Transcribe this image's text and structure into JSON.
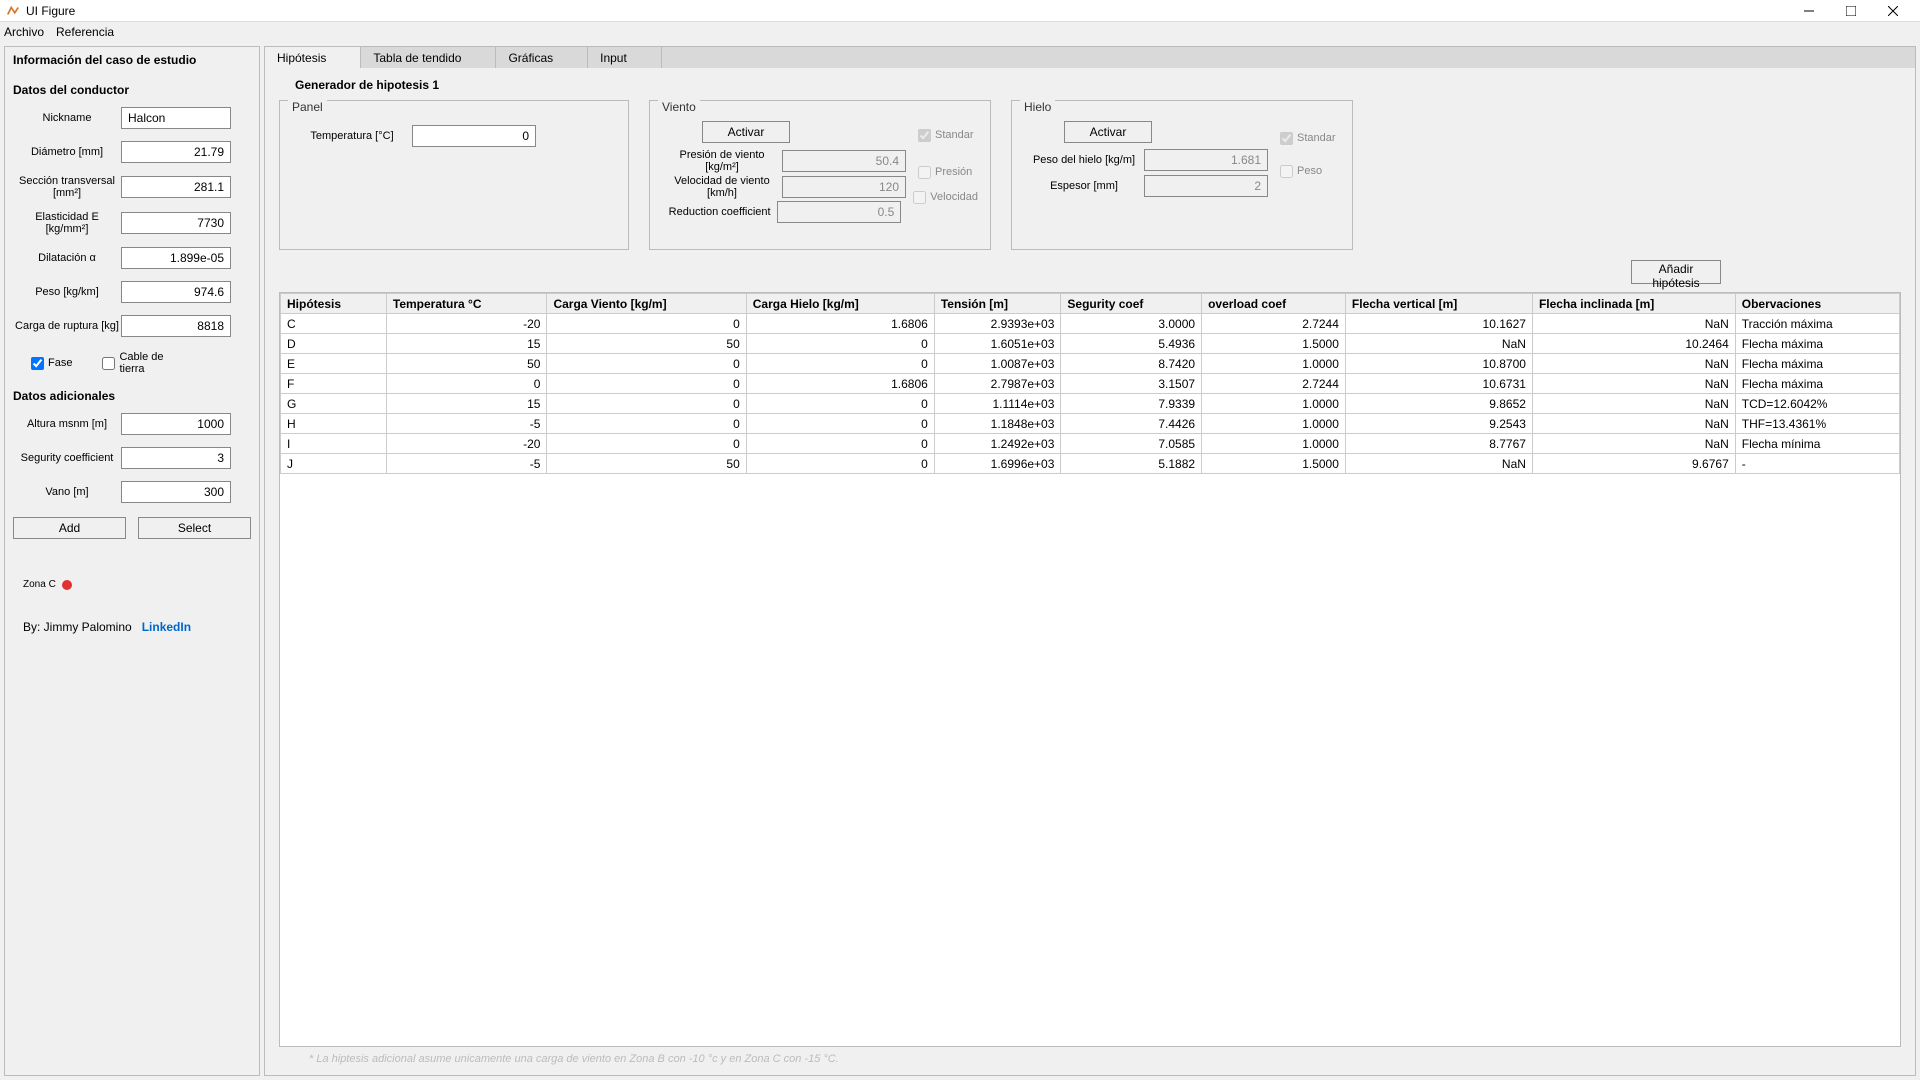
{
  "window": {
    "title": "UI Figure"
  },
  "menu": {
    "archivo": "Archivo",
    "referencia": "Referencia"
  },
  "left": {
    "heading": "Información del caso de estudio",
    "sec1": "Datos del conductor",
    "nickname_l": "Nickname",
    "nickname_v": "Halcon",
    "diam_l": "Diámetro [mm]",
    "diam_v": "21.79",
    "secc_l": "Sección transversal [mm²]",
    "secc_v": "281.1",
    "elas_l": "Elasticidad E [kg/mm²]",
    "elas_v": "7730",
    "dila_l": "Dilatación α",
    "dila_v": "1.899e-05",
    "peso_l": "Peso [kg/km]",
    "peso_v": "974.6",
    "carga_l": "Carga de ruptura [kg]",
    "carga_v": "8818",
    "fase": "Fase",
    "cable": "Cable de tierra",
    "sec2": "Datos adicionales",
    "alt_l": "Altura msnm [m]",
    "alt_v": "1000",
    "seg_l": "Segurity coefficient",
    "seg_v": "3",
    "vano_l": "Vano [m]",
    "vano_v": "300",
    "add": "Add",
    "select": "Select",
    "zone": "Zona C",
    "by": "By: Jimmy Palomino",
    "link": "LinkedIn"
  },
  "tabs": {
    "t1": "Hipótesis",
    "t2": "Tabla de tendido",
    "t3": "Gráficas",
    "t4": "Input"
  },
  "main": {
    "gen": "Generador de hipotesis 1",
    "panel_t": "Panel",
    "temp_l": "Temperatura [°C]",
    "temp_v": "0",
    "viento_t": "Viento",
    "activar": "Activar",
    "presion_l": "Presión de viento [kg/m²]",
    "presion_v": "50.4",
    "vel_l": "Velocidad de viento [km/h]",
    "vel_v": "120",
    "red_l": "Reduction coefficient",
    "red_v": "0.5",
    "standar": "Standar",
    "presion": "Presión",
    "velocidad": "Velocidad",
    "hielo_t": "Hielo",
    "pesoh_l": "Peso del hielo [kg/m]",
    "pesoh_v": "1.681",
    "esp_l": "Espesor [mm]",
    "esp_v": "2",
    "pesochk": "Peso",
    "addhyp": "Añadir hipótesis",
    "footnote": "* La hiptesis adicional asume unicamente una carga de viento en Zona B con -10 °c y en Zona C con -15 °C."
  },
  "table": {
    "headers": [
      "Hipótesis",
      "Temperatura °C",
      "Carga Viento [kg/m]",
      "Carga Hielo [kg/m]",
      "Tensión [m]",
      "Segurity coef",
      "overload coef",
      "Flecha vertical [m]",
      "Flecha inclinada [m]",
      "Obervaciones"
    ],
    "rows": [
      [
        "C",
        "-20",
        "0",
        "1.6806",
        "2.9393e+03",
        "3.0000",
        "2.7244",
        "10.1627",
        "NaN",
        "Tracción máxima"
      ],
      [
        "D",
        "15",
        "50",
        "0",
        "1.6051e+03",
        "5.4936",
        "1.5000",
        "NaN",
        "10.2464",
        "Flecha máxima"
      ],
      [
        "E",
        "50",
        "0",
        "0",
        "1.0087e+03",
        "8.7420",
        "1.0000",
        "10.8700",
        "NaN",
        "Flecha máxima"
      ],
      [
        "F",
        "0",
        "0",
        "1.6806",
        "2.7987e+03",
        "3.1507",
        "2.7244",
        "10.6731",
        "NaN",
        "Flecha máxima"
      ],
      [
        "G",
        "15",
        "0",
        "0",
        "1.1114e+03",
        "7.9339",
        "1.0000",
        "9.8652",
        "NaN",
        "TCD=12.6042%"
      ],
      [
        "H",
        "-5",
        "0",
        "0",
        "1.1848e+03",
        "7.4426",
        "1.0000",
        "9.2543",
        "NaN",
        "THF=13.4361%"
      ],
      [
        "I",
        "-20",
        "0",
        "0",
        "1.2492e+03",
        "7.0585",
        "1.0000",
        "8.7767",
        "NaN",
        "Flecha mínima"
      ],
      [
        "J",
        "-5",
        "50",
        "0",
        "1.6996e+03",
        "5.1882",
        "1.5000",
        "NaN",
        "9.6767",
        "-"
      ]
    ]
  }
}
